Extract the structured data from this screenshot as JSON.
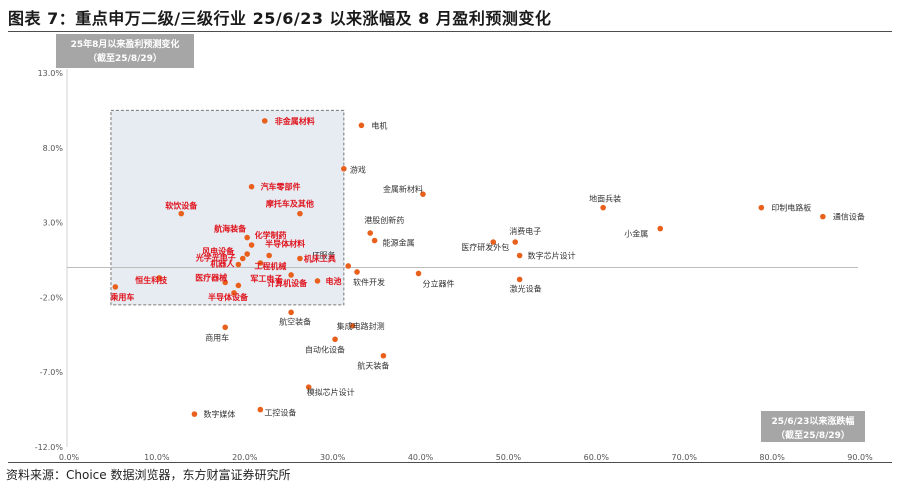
{
  "title": "图表 7：重点申万二级/三级行业 25/6/23 以来涨幅及 8 月盈利预测变化",
  "source": "资料来源：Choice 数据浏览器，东方财富证券研究所",
  "colors": {
    "point": "#e8601c",
    "highlight_text": "#e0141e",
    "normal_text": "#333333",
    "box_fill": "#a6a6a6",
    "region_fill": "#dfe6ee",
    "region_border": "#777777"
  },
  "chart_data": {
    "type": "scatter",
    "y_axis_label": [
      "25年8月以来盈利预测变化",
      "（截至25/8/29）"
    ],
    "x_axis_label": [
      "25/6/23以来涨跌幅",
      "（截至25/8/29）"
    ],
    "xlim": [
      0,
      90
    ],
    "ylim": [
      -12,
      13
    ],
    "x_ticks": [
      "0.0%",
      "10.0%",
      "20.0%",
      "30.0%",
      "40.0%",
      "50.0%",
      "60.0%",
      "70.0%",
      "80.0%",
      "90.0%"
    ],
    "y_ticks": [
      "13.0%",
      "8.0%",
      "3.0%",
      "-2.0%",
      "-7.0%",
      "-12.0%"
    ],
    "highlight_region": {
      "x": [
        5,
        31.5
      ],
      "y": [
        -2.5,
        10.5
      ]
    },
    "points": [
      {
        "label": "非金属材料",
        "x": 22.5,
        "y": 9.8,
        "highlight": true
      },
      {
        "label": "电机",
        "x": 33.5,
        "y": 9.5,
        "highlight": false
      },
      {
        "label": "游戏",
        "x": 31.5,
        "y": 6.6,
        "highlight": false
      },
      {
        "label": "汽车零部件",
        "x": 21,
        "y": 5.4,
        "highlight": true
      },
      {
        "label": "金属新材料",
        "x": 40.5,
        "y": 4.9,
        "highlight": false
      },
      {
        "label": "地面兵装",
        "x": 61,
        "y": 4.0,
        "highlight": false
      },
      {
        "label": "印制电路板",
        "x": 79,
        "y": 4.0,
        "highlight": false
      },
      {
        "label": "通信设备",
        "x": 86,
        "y": 3.4,
        "highlight": false
      },
      {
        "label": "软饮设备",
        "x": 13,
        "y": 3.6,
        "highlight": true
      },
      {
        "label": "摩托车及其他",
        "x": 26.5,
        "y": 3.6,
        "highlight": true
      },
      {
        "label": "航海装备",
        "x": 20.5,
        "y": 2.0,
        "highlight": true
      },
      {
        "label": "化学制药",
        "x": 21,
        "y": 1.5,
        "highlight": true
      },
      {
        "label": "港股创新药",
        "x": 34.5,
        "y": 2.3,
        "highlight": false
      },
      {
        "label": "能源金属",
        "x": 35,
        "y": 1.8,
        "highlight": false
      },
      {
        "label": "消费电子",
        "x": 51,
        "y": 1.7,
        "highlight": false
      },
      {
        "label": "医疗研发外包",
        "x": 48.5,
        "y": 1.7,
        "highlight": false
      },
      {
        "label": "小金属",
        "x": 67.5,
        "y": 2.6,
        "highlight": false
      },
      {
        "label": "风电设备",
        "x": 20.5,
        "y": 0.9,
        "highlight": true
      },
      {
        "label": "光学光电子",
        "x": 20,
        "y": 0.6,
        "highlight": true
      },
      {
        "label": "半导体材料",
        "x": 23,
        "y": 0.8,
        "highlight": true
      },
      {
        "label": "数字芯片设计",
        "x": 51.5,
        "y": 0.8,
        "highlight": false
      },
      {
        "label": "IT服务",
        "x": 32,
        "y": 0.1,
        "highlight": false
      },
      {
        "label": "工程机械",
        "x": 22,
        "y": 0.3,
        "highlight": true
      },
      {
        "label": "机器人",
        "x": 19.5,
        "y": 0.2,
        "highlight": true
      },
      {
        "label": "恒生科技",
        "x": 10.5,
        "y": -0.7,
        "highlight": true
      },
      {
        "label": "机床工具",
        "x": 26.5,
        "y": 0.6,
        "highlight": true
      },
      {
        "label": "软件开发",
        "x": 33,
        "y": -0.3,
        "highlight": false
      },
      {
        "label": "分立器件",
        "x": 40,
        "y": -0.4,
        "highlight": false
      },
      {
        "label": "医疗器械",
        "x": 18,
        "y": -1.0,
        "highlight": true
      },
      {
        "label": "军工电子",
        "x": 19.5,
        "y": -1.2,
        "highlight": true
      },
      {
        "label": "计算机设备",
        "x": 25.5,
        "y": -0.5,
        "highlight": true
      },
      {
        "label": "电池",
        "x": 28.5,
        "y": -0.9,
        "highlight": true
      },
      {
        "label": "激光设备",
        "x": 51.5,
        "y": -0.8,
        "highlight": false
      },
      {
        "label": "乘用车",
        "x": 5.5,
        "y": -1.3,
        "highlight": true
      },
      {
        "label": "半导体设备",
        "x": 19,
        "y": -1.7,
        "highlight": true
      },
      {
        "label": "航空装备",
        "x": 25.5,
        "y": -3.0,
        "highlight": false
      },
      {
        "label": "集成电路封测",
        "x": 32.5,
        "y": -3.9,
        "highlight": false
      },
      {
        "label": "商用车",
        "x": 18,
        "y": -4.0,
        "highlight": false
      },
      {
        "label": "自动化设备",
        "x": 30.5,
        "y": -4.8,
        "highlight": false
      },
      {
        "label": "航天装备",
        "x": 36,
        "y": -5.9,
        "highlight": false
      },
      {
        "label": "模拟芯片设计",
        "x": 27.5,
        "y": -8.0,
        "highlight": false
      },
      {
        "label": "数字媒体",
        "x": 14.5,
        "y": -9.8,
        "highlight": false
      },
      {
        "label": "工控设备",
        "x": 22,
        "y": -9.5,
        "highlight": false
      }
    ]
  }
}
